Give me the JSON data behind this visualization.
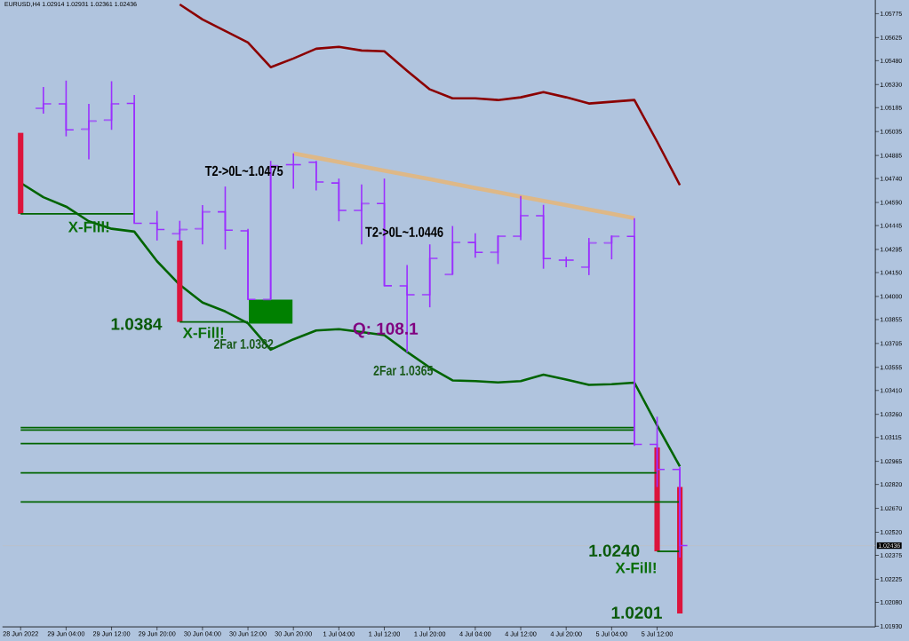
{
  "chart_data": {
    "type": "candlestick",
    "title": "EURUSD,H4 1.02914 1.02931 1.02361 1.02436",
    "categories": [
      "28 Jun 2022",
      null,
      "29 Jun 04:00",
      null,
      "29 Jun 12:00",
      null,
      "29 Jun 20:00",
      null,
      "30 Jun 04:00",
      null,
      "30 Jun 12:00",
      null,
      "30 Jun 20:00",
      null,
      "1 Jul 04:00",
      null,
      "1 Jul 12:00",
      null,
      "1 Jul 20:00",
      null,
      "4 Jul 04:00",
      null,
      "4 Jul 12:00",
      null,
      "4 Jul 20:00",
      null,
      "5 Jul 04:00",
      null,
      "5 Jul 12:00",
      null
    ],
    "color": "#9b30ff",
    "ohlc": [
      null,
      [
        1.05181,
        1.05315,
        1.05148,
        1.05209
      ],
      [
        1.05209,
        1.05355,
        1.05005,
        1.05046
      ],
      [
        1.0505,
        1.05209,
        1.04861,
        1.05101
      ],
      [
        1.05107,
        1.05351,
        1.05046,
        1.05209
      ],
      [
        1.05212,
        1.05265,
        1.04459,
        1.04459
      ],
      [
        1.04459,
        1.04537,
        1.04351,
        1.0442
      ],
      [
        1.04394,
        1.04475,
        1.04351,
        1.0442
      ],
      [
        1.04425,
        1.04573,
        1.04327,
        1.04531
      ],
      [
        1.04531,
        1.0469,
        1.04295,
        1.04416
      ],
      [
        1.04412,
        1.04425,
        1.03981,
        1.03981
      ],
      [
        1.03981,
        1.04851,
        1.03981,
        1.0482
      ],
      [
        1.04827,
        1.04898,
        1.04676,
        1.04827
      ],
      [
        1.04842,
        1.04851,
        1.04666,
        1.04718
      ],
      [
        1.04712,
        1.0474,
        1.04472,
        1.0454
      ],
      [
        1.0454,
        1.04703,
        1.04327,
        1.04583
      ],
      [
        1.04583,
        1.0474,
        1.04067,
        1.04067
      ],
      [
        1.04066,
        1.04198,
        1.03648,
        1.04011
      ],
      [
        1.04011,
        1.04327,
        1.03932,
        1.04239
      ],
      [
        1.04138,
        1.04442,
        1.04138,
        1.04339
      ],
      [
        1.04339,
        1.04396,
        1.04243,
        1.04277
      ],
      [
        1.04277,
        1.04383,
        1.04204,
        1.04378
      ],
      [
        1.04378,
        1.04631,
        1.04353,
        1.04507
      ],
      [
        1.04507,
        1.04575,
        1.04174,
        1.04238
      ],
      [
        1.04228,
        1.04249,
        1.04184,
        1.04228
      ],
      [
        1.04184,
        1.04367,
        1.04134,
        1.04336
      ],
      [
        1.04336,
        1.04383,
        1.04233,
        1.04377
      ],
      [
        1.04377,
        1.04492,
        1.03062,
        1.03072
      ],
      [
        1.03072,
        1.03245,
        1.02804,
        1.02914
      ],
      [
        1.02914,
        1.02931,
        1.02361,
        1.02436
      ]
    ],
    "series": [
      {
        "type": "line",
        "color": "#8b0000",
        "values": [
          null,
          null,
          null,
          null,
          null,
          null,
          null,
          1.05833,
          1.05739,
          1.05667,
          1.05594,
          1.05439,
          1.05494,
          1.05555,
          1.05567,
          1.05544,
          1.05539,
          1.05417,
          1.053,
          1.05244,
          1.05244,
          1.05233,
          1.0525,
          1.05283,
          1.0525,
          1.05211,
          1.05222,
          1.05233,
          1.04972,
          1.04699
        ]
      },
      {
        "type": "line",
        "color": "#006400",
        "values": [
          1.04713,
          1.04623,
          1.04564,
          1.04472,
          1.04425,
          1.04407,
          1.04221,
          1.04073,
          1.03962,
          1.03906,
          1.03832,
          1.03666,
          1.03731,
          1.03786,
          1.03795,
          1.03777,
          1.03757,
          1.03652,
          1.03554,
          1.03473,
          1.03469,
          1.0346,
          1.03469,
          1.03509,
          1.03479,
          1.03445,
          1.03449,
          1.03459,
          1.03191,
          1.02933
        ]
      },
      {
        "type": "line",
        "color": "#deb887",
        "values": [
          null,
          null,
          null,
          null,
          null,
          null,
          null,
          null,
          null,
          null,
          null,
          null,
          1.04898,
          1.04871,
          1.04844,
          1.04817,
          1.0479,
          1.04763,
          1.04736,
          1.04709,
          1.04681,
          1.04654,
          1.04627,
          1.046,
          1.04573,
          1.04546,
          1.04519,
          1.04492,
          null,
          null
        ]
      },
      {
        "type": "bar",
        "color": "#dc143c",
        "values": [
          0.00509,
          null,
          null,
          null,
          null,
          null,
          null,
          0.00511,
          null,
          null,
          null,
          null,
          null,
          null,
          null,
          null,
          null,
          null,
          null,
          null,
          null,
          null,
          null,
          null,
          null,
          null,
          null,
          null,
          0.00652,
          0.00794
        ],
        "base": [
          1.04518,
          null,
          null,
          null,
          null,
          null,
          null,
          1.0384,
          null,
          null,
          null,
          null,
          null,
          null,
          null,
          null,
          null,
          null,
          null,
          null,
          null,
          null,
          null,
          null,
          null,
          null,
          null,
          null,
          1.024,
          1.0201
        ]
      },
      {
        "type": "bar",
        "color": "#008000",
        "values": [
          null,
          null,
          null,
          null,
          null,
          null,
          null,
          null,
          null,
          null,
          null,
          0.0015,
          null,
          null,
          null,
          null,
          null,
          null,
          null,
          null,
          null,
          null,
          null,
          null,
          null,
          null,
          null,
          null,
          null,
          null
        ],
        "base": [
          null,
          null,
          null,
          null,
          null,
          null,
          null,
          null,
          null,
          null,
          null,
          1.0383,
          null,
          null,
          null,
          null,
          null,
          null,
          null,
          null,
          null,
          null,
          null,
          null,
          null,
          null,
          null,
          null,
          null,
          null
        ]
      },
      {
        "type": "line",
        "color": "#006400",
        "values": [
          1.04518,
          1.04518,
          1.04518,
          1.04518,
          1.04518,
          1.04518,
          null,
          null,
          null,
          null,
          null,
          null,
          null,
          null,
          null,
          null,
          null,
          null,
          null,
          null,
          null,
          null,
          null,
          null,
          null,
          null,
          null,
          null,
          null,
          null
        ]
      },
      {
        "type": "line",
        "color": "#006400",
        "values": [
          null,
          null,
          null,
          null,
          null,
          null,
          null,
          1.0384,
          1.0384,
          1.0384,
          1.0384,
          null,
          null,
          null,
          null,
          null,
          null,
          null,
          null,
          null,
          null,
          null,
          null,
          null,
          null,
          null,
          null,
          null,
          null,
          null
        ]
      },
      {
        "type": "line",
        "color": "#006400",
        "values": [
          null,
          null,
          null,
          null,
          null,
          null,
          null,
          null,
          null,
          null,
          null,
          null,
          null,
          null,
          null,
          null,
          null,
          null,
          null,
          null,
          null,
          null,
          null,
          null,
          null,
          null,
          null,
          null,
          1.024,
          1.024
        ]
      },
      {
        "type": "line",
        "color": "#006400",
        "values": [
          1.03177,
          1.03177,
          1.03177,
          1.03177,
          1.03177,
          1.03177,
          1.03177,
          1.03177,
          1.03177,
          1.03177,
          1.03177,
          1.03177,
          1.03177,
          1.03177,
          1.03177,
          1.03177,
          1.03177,
          1.03177,
          1.03177,
          1.03177,
          1.03177,
          1.03177,
          1.03177,
          1.03177,
          1.03177,
          1.03177,
          1.03177,
          1.03177,
          null,
          null
        ]
      },
      {
        "type": "line",
        "color": "#006400",
        "values": [
          1.03161,
          1.03161,
          1.03161,
          1.03161,
          1.03161,
          1.03161,
          1.03161,
          1.03161,
          1.03161,
          1.03161,
          1.03161,
          1.03161,
          1.03161,
          1.03161,
          1.03161,
          1.03161,
          1.03161,
          1.03161,
          1.03161,
          1.03161,
          1.03161,
          1.03161,
          1.03161,
          1.03161,
          1.03161,
          1.03161,
          1.03161,
          1.03161,
          null,
          null
        ]
      },
      {
        "type": "line",
        "color": "#006400",
        "values": [
          1.03076,
          1.03076,
          1.03076,
          1.03076,
          1.03076,
          1.03076,
          1.03076,
          1.03076,
          1.03076,
          1.03076,
          1.03076,
          1.03076,
          1.03076,
          1.03076,
          1.03076,
          1.03076,
          1.03076,
          1.03076,
          1.03076,
          1.03076,
          1.03076,
          1.03076,
          1.03076,
          1.03076,
          1.03076,
          1.03076,
          1.03076,
          1.03076,
          null,
          null
        ]
      },
      {
        "type": "line",
        "color": "#006400",
        "values": [
          1.02893,
          1.02893,
          1.02893,
          1.02893,
          1.02893,
          1.02893,
          1.02893,
          1.02893,
          1.02893,
          1.02893,
          1.02893,
          1.02893,
          1.02893,
          1.02893,
          1.02893,
          1.02893,
          1.02893,
          1.02893,
          1.02893,
          1.02893,
          1.02893,
          1.02893,
          1.02893,
          1.02893,
          1.02893,
          1.02893,
          1.02893,
          1.02893,
          1.02893,
          null
        ]
      },
      {
        "type": "line",
        "color": "#006400",
        "values": [
          1.0271,
          1.0271,
          1.0271,
          1.0271,
          1.0271,
          1.0271,
          1.0271,
          1.0271,
          1.0271,
          1.0271,
          1.0271,
          1.0271,
          1.0271,
          1.0271,
          1.0271,
          1.0271,
          1.0271,
          1.0271,
          1.0271,
          1.0271,
          1.0271,
          1.0271,
          1.0271,
          1.0271,
          1.0271,
          1.0271,
          1.0271,
          1.0271,
          1.0271,
          1.0271
        ]
      }
    ],
    "ylim": [
      1.01926,
      1.05861
    ],
    "yticks": [
      1.05775,
      1.05625,
      {
        "value": 1.0548,
        "label": "1.05480"
      },
      {
        "value": 1.0533,
        "label": "1.05330"
      },
      1.05185,
      1.05035,
      1.04885,
      {
        "value": 1.0474,
        "label": "1.04740"
      },
      {
        "value": 1.0459,
        "label": "1.04590"
      },
      1.04445,
      1.04295,
      {
        "value": 1.0415,
        "label": "1.04150"
      },
      {
        "value": 1.04,
        "label": "1.04000"
      },
      1.03855,
      1.03705,
      1.03555,
      {
        "value": 1.0341,
        "label": "1.03410"
      },
      {
        "value": 1.0326,
        "label": "1.03260"
      },
      1.03115,
      1.02965,
      {
        "value": 1.0282,
        "label": "1.02820"
      },
      {
        "value": 1.0267,
        "label": "1.02670"
      },
      {
        "value": 1.0252,
        "label": "1.02520"
      },
      1.02375,
      1.02225,
      {
        "value": 1.0208,
        "label": "1.02080"
      },
      {
        "value": 1.0193,
        "label": "1.01930"
      }
    ],
    "ref_lines": [
      {
        "axis": "y",
        "value": 1.02436,
        "label": "1.02436",
        "color": "#c0c0c0"
      }
    ],
    "annotations": [
      "T2->0L~1.0475",
      "T2->0L~1.0446",
      "X-Fill!",
      "1.0384",
      "X-Fill!",
      "2Far 1.0382",
      "Q: 108.1",
      "2Far 1.0365",
      "1.0240",
      "X-Fill!",
      "1.0201"
    ]
  }
}
